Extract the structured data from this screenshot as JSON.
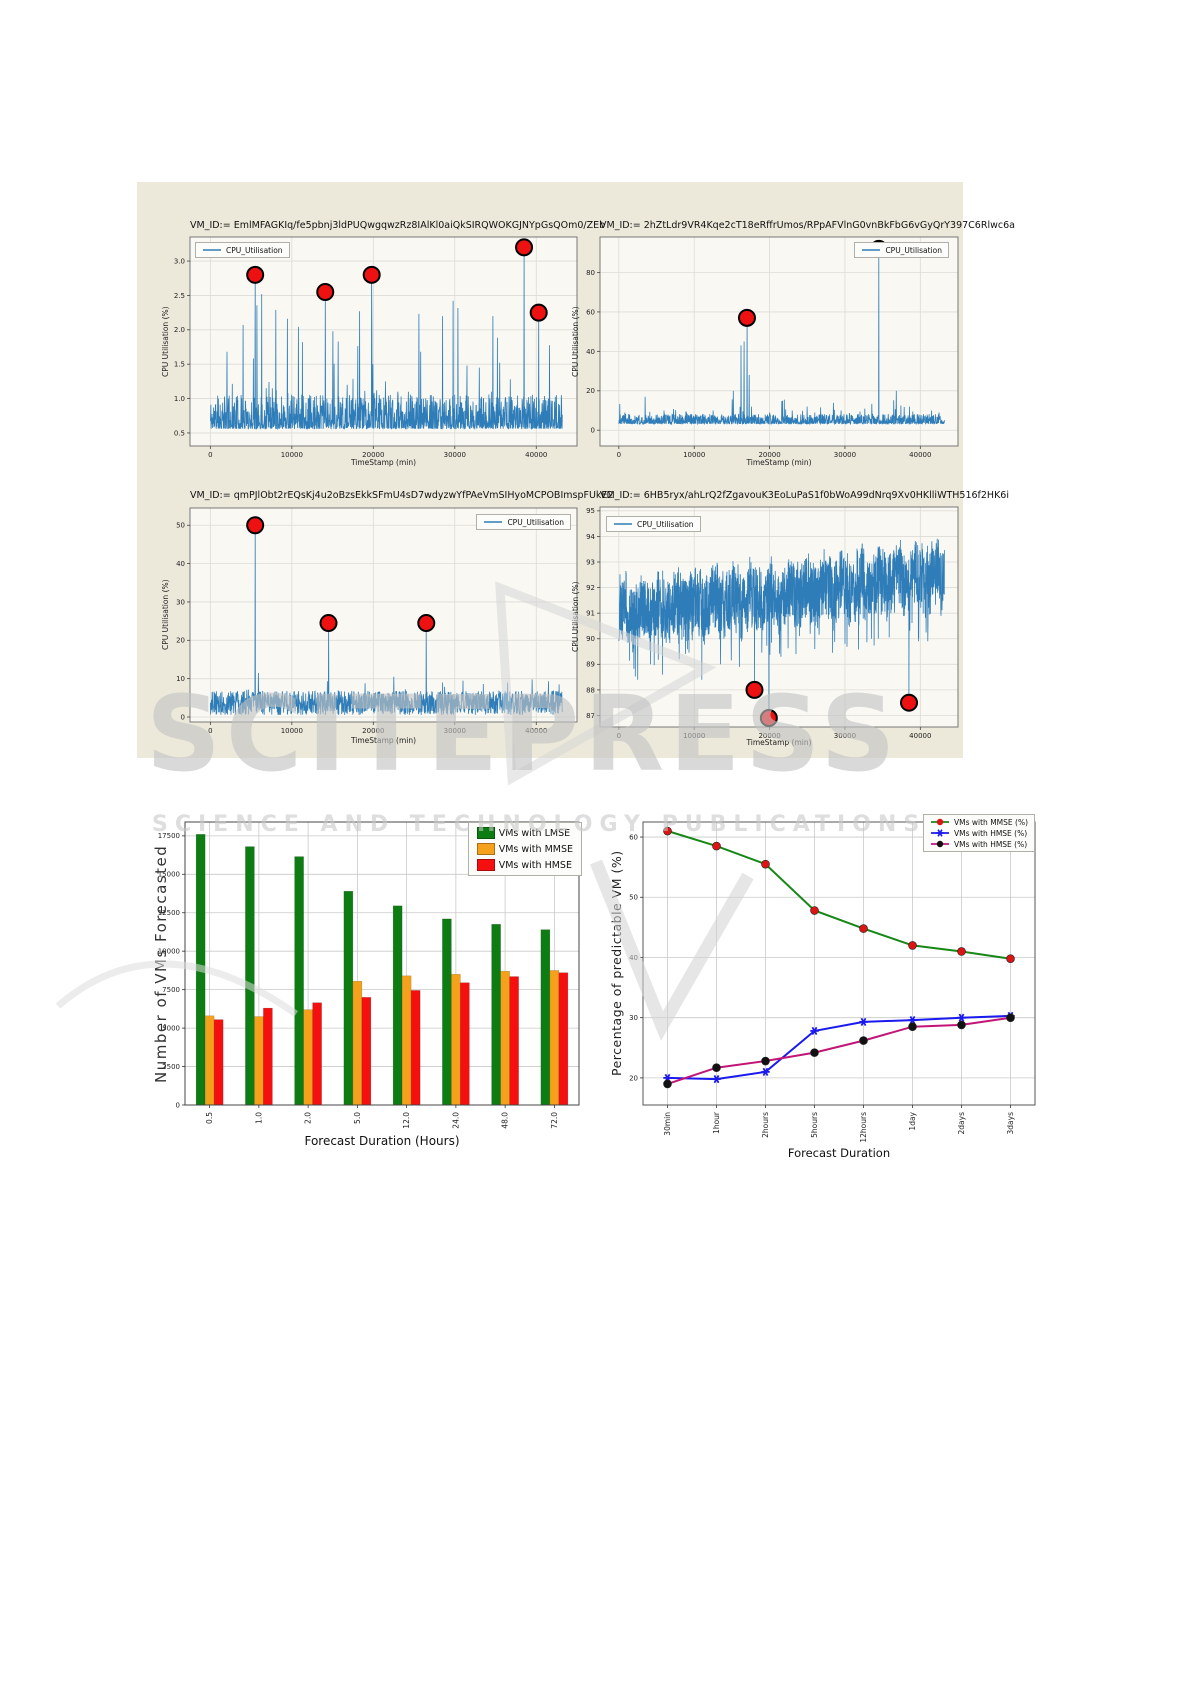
{
  "watermark": {
    "line1": "SCITEPRESS",
    "line2": "SCIENCE AND TECHNOLOGY PUBLICATIONS",
    "color": "#c3c3c3"
  },
  "figure_panel_background": "#ece8da",
  "chart_data": [
    {
      "type": "line",
      "title": "VM_ID:= EmlMFAGKIq/fe5pbnj3ldPUQwgqwzRz8IAlKl0aiQkSIRQWOKGJNYpGsQOm0/ZEb",
      "legend": [
        "CPU_Utilisation"
      ],
      "legend_position": "upper-left",
      "xlabel": "TimeStamp (min)",
      "ylabel": "CPU Utilisation (%)",
      "xlim": [
        -2500,
        45000
      ],
      "ylim": [
        0.31,
        3.35
      ],
      "xticks": [
        0,
        10000,
        20000,
        30000,
        40000
      ],
      "xtick_labels": [
        "0",
        "10000",
        "20000",
        "30000",
        "40000"
      ],
      "yticks": [
        0.5,
        1.0,
        1.5,
        2.0,
        2.5,
        3.0
      ],
      "ytick_labels": [
        "0.5",
        "1.0",
        "1.5",
        "2.0",
        "2.5",
        "3.0"
      ],
      "line_color": "#2f7db8",
      "annotation_color": "#ee1111",
      "annotations": [
        [
          5500,
          2.8
        ],
        [
          14100,
          2.55
        ],
        [
          19800,
          2.8
        ],
        [
          38500,
          3.2
        ],
        [
          40300,
          2.25
        ]
      ],
      "trace_profile": {
        "seed": 11,
        "n": 1400,
        "xmax": 43200,
        "base": 0.56,
        "jitter": 0.5,
        "pow": 2.2,
        "spike_prob": 0.02,
        "spike_base": 0.45,
        "spike_amp": 1.55,
        "spikes": [
          [
            1000,
            1.0
          ],
          [
            2200,
            1.0
          ],
          [
            4000,
            2.07
          ],
          [
            5500,
            2.8
          ],
          [
            6300,
            2.52
          ],
          [
            7600,
            1.15
          ],
          [
            9500,
            1.08
          ],
          [
            12000,
            1.0
          ],
          [
            14100,
            2.55
          ],
          [
            15700,
            1.83
          ],
          [
            16800,
            1.2
          ],
          [
            18300,
            2.27
          ],
          [
            19800,
            2.8
          ],
          [
            20400,
            1.12
          ],
          [
            21500,
            1.25
          ],
          [
            23000,
            1.1
          ],
          [
            24300,
            1.1
          ],
          [
            25800,
            1.68
          ],
          [
            27000,
            1.05
          ],
          [
            28500,
            2.2
          ],
          [
            29800,
            2.42
          ],
          [
            31500,
            1.48
          ],
          [
            33000,
            1.45
          ],
          [
            34500,
            1.1
          ],
          [
            35500,
            1.52
          ],
          [
            36800,
            1.28
          ],
          [
            38500,
            3.2
          ],
          [
            40300,
            2.25
          ],
          [
            41500,
            1.0
          ],
          [
            42500,
            1.05
          ]
        ]
      }
    },
    {
      "type": "line",
      "title": "VM_ID:= 2hZtLdr9VR4Kqe2cT18eRffrUmos/RPpAFVlnG0vnBkFbG6vGyQrY397C6Rlwc6a",
      "legend": [
        "CPU_Utilisation"
      ],
      "legend_position": "upper-right",
      "xlabel": "TimeStamp (min)",
      "ylabel": "CPU Utilisation (%)",
      "xlim": [
        -2500,
        45000
      ],
      "ylim": [
        -8,
        98
      ],
      "xticks": [
        0,
        10000,
        20000,
        30000,
        40000
      ],
      "xtick_labels": [
        "0",
        "10000",
        "20000",
        "30000",
        "40000"
      ],
      "yticks": [
        0,
        20,
        40,
        60,
        80
      ],
      "ytick_labels": [
        "0",
        "20",
        "40",
        "60",
        "80"
      ],
      "line_color": "#2f7db8",
      "annotation_color": "#ee1111",
      "annotations": [
        [
          17000,
          57
        ],
        [
          34500,
          92
        ]
      ],
      "trace_profile": {
        "seed": 23,
        "n": 1400,
        "xmax": 43200,
        "base": 3.2,
        "jitter": 5,
        "pow": 2,
        "spike_prob": 0.012,
        "spike_base": 3,
        "spike_amp": 10,
        "spikes": [
          [
            800,
            9
          ],
          [
            3500,
            17
          ],
          [
            6000,
            10
          ],
          [
            9000,
            9
          ],
          [
            12500,
            10
          ],
          [
            15200,
            20
          ],
          [
            16200,
            43
          ],
          [
            16600,
            45
          ],
          [
            17000,
            57
          ],
          [
            17300,
            28
          ],
          [
            17600,
            12
          ],
          [
            20000,
            9
          ],
          [
            23000,
            10
          ],
          [
            26000,
            9
          ],
          [
            29500,
            10
          ],
          [
            32000,
            9.5
          ],
          [
            34500,
            92
          ],
          [
            36800,
            20
          ],
          [
            39000,
            9.5
          ],
          [
            41500,
            10
          ],
          [
            42500,
            9
          ]
        ]
      }
    },
    {
      "type": "line",
      "title": "VM_ID:= qmPJlObt2rEQsKj4u2oBzsEkkSFmU4sD7wdyzwYfPAeVmSIHyoMCPOBImspFUkE2",
      "legend": [
        "CPU_Utilisation"
      ],
      "legend_position": "upper-right",
      "xlabel": "TimeStamp (min)",
      "ylabel": "CPU Utilisation (%)",
      "xlim": [
        -2500,
        45000
      ],
      "ylim": [
        -1.3,
        54.5
      ],
      "xticks": [
        0,
        10000,
        20000,
        30000,
        40000
      ],
      "xtick_labels": [
        "0",
        "10000",
        "20000",
        "30000",
        "40000"
      ],
      "yticks": [
        0,
        10,
        20,
        30,
        40,
        50
      ],
      "ytick_labels": [
        "0",
        "10",
        "20",
        "30",
        "40",
        "50"
      ],
      "line_color": "#2f7db8",
      "annotation_color": "#ee1111",
      "annotations": [
        [
          5500,
          50
        ],
        [
          14500,
          24.5
        ],
        [
          26500,
          24.5
        ]
      ],
      "trace_profile": {
        "seed": 37,
        "n": 1400,
        "xmax": 43200,
        "base": 0.5,
        "jitter": 6.3,
        "pow": 1,
        "spike_prob": 0.008,
        "spike_base": 2,
        "spike_amp": 7,
        "spikes": [
          [
            5500,
            50
          ],
          [
            5900,
            11.5
          ],
          [
            14500,
            24.5
          ],
          [
            19000,
            8.8
          ],
          [
            22500,
            10.5
          ],
          [
            26500,
            24.5
          ],
          [
            28500,
            9
          ],
          [
            31000,
            9.5
          ],
          [
            33500,
            8.6
          ],
          [
            36500,
            9
          ],
          [
            39500,
            9.8
          ],
          [
            41500,
            9.3
          ],
          [
            42800,
            8.5
          ]
        ]
      }
    },
    {
      "type": "line",
      "title": "VM_ID:= 6HB5ryx/ahLrQ2fZgavouK3EoLuPaS1f0bWoA99dNrq9Xv0HKlliWTH516f2HK6i",
      "legend": [
        "CPU_Utilisation"
      ],
      "legend_position": "upper-left",
      "xlabel": "TimeStamp (min)",
      "ylabel": "CPU Utilisation (%)",
      "xlim": [
        -2500,
        45000
      ],
      "ylim": [
        86.55,
        95.15
      ],
      "xticks": [
        0,
        10000,
        20000,
        30000,
        40000
      ],
      "xtick_labels": [
        "0",
        "10000",
        "20000",
        "30000",
        "40000"
      ],
      "yticks": [
        87,
        88,
        89,
        90,
        91,
        92,
        93,
        94,
        95
      ],
      "ytick_labels": [
        "87",
        "88",
        "89",
        "90",
        "91",
        "92",
        "93",
        "94",
        "95"
      ],
      "line_color": "#2f7db8",
      "annotation_color": "#ee1111",
      "annotations": [
        [
          18000,
          88.0
        ],
        [
          19900,
          86.9
        ],
        [
          38500,
          87.5
        ]
      ],
      "trace_profile": {
        "seed": 53,
        "n": 1900,
        "xmax": 43200,
        "band": {
          "start": 91.0,
          "end": 92.45,
          "amp": 1.25,
          "wave": 0.25,
          "dip_prob": 0.02,
          "dip_depth": 1.6
        },
        "spikes": [
          [
            2500,
            88.4
          ],
          [
            4200,
            89.0
          ],
          [
            5800,
            88.6
          ],
          [
            8000,
            89.2
          ],
          [
            11000,
            88.4
          ],
          [
            13500,
            89.0
          ],
          [
            16000,
            88.9
          ],
          [
            18000,
            88.3
          ],
          [
            19900,
            87.05
          ],
          [
            21500,
            89.3
          ],
          [
            23500,
            89.4
          ],
          [
            26000,
            89.6
          ],
          [
            30000,
            89.8
          ],
          [
            33500,
            90.0
          ],
          [
            38500,
            87.6
          ],
          [
            41000,
            89.9
          ]
        ]
      }
    },
    {
      "type": "bar",
      "title": "",
      "categories": [
        "0.5",
        "1.0",
        "2.0",
        "5.0",
        "12.0",
        "24.0",
        "48.0",
        "72.0"
      ],
      "xlabel": "Forecast Duration (Hours)",
      "ylabel": "Number of VMs Forecasted",
      "ylim": [
        0,
        18400
      ],
      "yticks": [
        0,
        2500,
        5000,
        7500,
        10000,
        12500,
        15000,
        17500
      ],
      "ytick_labels": [
        "0",
        "2500",
        "5000",
        "7500",
        "10000",
        "12500",
        "15000",
        "17500"
      ],
      "legend_position": "upper-right",
      "series": [
        {
          "name": "VMs with LMSE",
          "color": "#0d7d13",
          "values": [
            17600,
            16800,
            16150,
            13900,
            12950,
            12100,
            11750,
            11400
          ]
        },
        {
          "name": "VMs with MMSE",
          "color": "#f5a11b",
          "values": [
            5800,
            5750,
            6200,
            8050,
            8400,
            8500,
            8700,
            8750
          ]
        },
        {
          "name": "VMs with HMSE",
          "color": "#f50f0f",
          "values": [
            5550,
            6300,
            6650,
            7000,
            7450,
            7950,
            8350,
            8600
          ]
        }
      ]
    },
    {
      "type": "line",
      "title": "",
      "categories": [
        "30min",
        "1hour",
        "2hours",
        "5hours",
        "12hours",
        "1day",
        "2days",
        "3days"
      ],
      "xlabel": "Forecast Duration",
      "ylabel": "Percentage of predictable VM (%)",
      "ylim": [
        15.5,
        62.5
      ],
      "yticks": [
        20,
        30,
        40,
        50,
        60
      ],
      "ytick_labels": [
        "20",
        "30",
        "40",
        "50",
        "60"
      ],
      "legend_position": "upper-right",
      "series": [
        {
          "name": "VMs with MMSE (%)",
          "color": "#178717",
          "marker": "circle",
          "marker_color": "#dd1414",
          "values": [
            61,
            58.5,
            55.5,
            47.8,
            44.8,
            42,
            41,
            39.8
          ]
        },
        {
          "name": "VMs with HMSE (%)",
          "color": "#1a1aee",
          "marker": "star",
          "marker_color": "#1a1aee",
          "values": [
            20,
            19.8,
            21,
            27.8,
            29.3,
            29.6,
            30,
            30.3
          ]
        },
        {
          "name": "VMs with HMSE (%)",
          "color": "#c21577",
          "marker": "circle",
          "marker_color": "#111111",
          "values": [
            19,
            21.7,
            22.8,
            24.2,
            26.2,
            28.5,
            28.8,
            30
          ]
        }
      ]
    }
  ]
}
